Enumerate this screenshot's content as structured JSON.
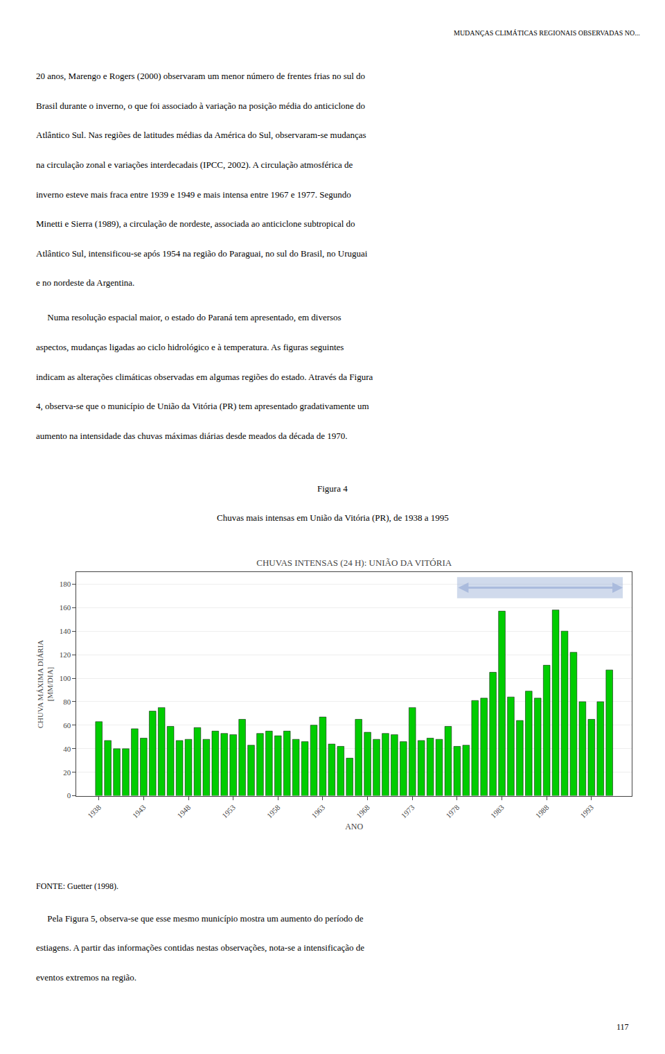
{
  "page_title": "MUDANÇAS CLIMÁTICAS REGIONAIS OBSERVADAS NO...",
  "paragraphs_before": [
    [
      "20 anos, Marengo e Rogers (2000) observaram um menor número de frentes frias no sul do",
      "Brasil durante o inverno, o que foi associado à variação na posição média do anticiclone do",
      "Atlântico Sul. Nas regiões de latitudes médias da América do Sul, observaram-se mudanças",
      "na circulação zonal e variações interdecadais (IPCC, 2002). A circulação atmosférica de",
      "inverno esteve mais fraca entre 1939 e 1949 e mais intensa entre 1967 e 1977. Segundo",
      "Minetti e Sierra (1989), a circulação de nordeste, associada ao anticiclone subtropical do",
      "Atlântico Sul, intensificou-se após 1954 na região do Paraguai, no sul do Brasil, no Uruguai",
      "e no nordeste da Argentina."
    ],
    [
      "     Numa resolução espacial maior, o estado do Paraná tem apresentado, em diversos",
      "aspectos, mudanças ligadas ao ciclo hidrológico e à temperatura. As figuras seguintes",
      "indicam as alterações climáticas observadas em algumas regiões do estado. Através da Figura",
      "4, observa-se que o município de União da Vitória (PR) tem apresentado gradativamente um",
      "aumento na intensidade das chuvas máximas diárias desde meados da década de 1970."
    ]
  ],
  "captions": [
    "Figura 4",
    "Chuvas mais intensas em União da Vitória (PR), de 1938 a 1995"
  ],
  "source": "FONTE: Guetter (1998).",
  "paragraphs_after": [
    [
      "     Pela Figura 5, observa-se que esse mesmo município mostra um aumento do período de",
      "estiagens. A partir das informações contidas nestas observações, nota-se a intensificação de",
      "eventos extremos na região."
    ]
  ],
  "page_number": "117",
  "chart_data": {
    "type": "bar",
    "title": "CHUVAS INTENSAS (24 H): UNIÃO DA VITÓRIA",
    "x_label": "ANO",
    "y_label": [
      "CHUVA MÁXIMA DIÁRIA",
      "[MM/DIA]"
    ],
    "x": [
      1938,
      1939,
      1940,
      1941,
      1942,
      1943,
      1944,
      1945,
      1946,
      1947,
      1948,
      1949,
      1950,
      1951,
      1952,
      1953,
      1954,
      1955,
      1956,
      1957,
      1958,
      1959,
      1960,
      1961,
      1962,
      1963,
      1964,
      1965,
      1966,
      1967,
      1968,
      1969,
      1970,
      1971,
      1972,
      1973,
      1974,
      1975,
      1976,
      1977,
      1978,
      1979,
      1980,
      1981,
      1982,
      1983,
      1984,
      1985,
      1986,
      1987,
      1988,
      1989,
      1990,
      1991,
      1992,
      1993,
      1994,
      1995
    ],
    "values": [
      63,
      47,
      40,
      40,
      57,
      49,
      72,
      75,
      59,
      47,
      48,
      58,
      48,
      55,
      53,
      52,
      65,
      43,
      53,
      55,
      51,
      55,
      48,
      46,
      60,
      67,
      44,
      42,
      32,
      65,
      54,
      48,
      53,
      52,
      46,
      75,
      47,
      49,
      48,
      59,
      42,
      43,
      81,
      83,
      105,
      157,
      84,
      64,
      89,
      83,
      111,
      158,
      140,
      122,
      80,
      65,
      80,
      107
    ],
    "color": "#00cc00",
    "xlim": [
      1935.5,
      1997.5
    ],
    "xticks": [
      1938,
      1943,
      1948,
      1953,
      1958,
      1963,
      1968,
      1973,
      1978,
      1983,
      1988,
      1993
    ],
    "ylim": [
      0,
      190
    ],
    "yticks": [
      0,
      20,
      40,
      60,
      80,
      100,
      120,
      140,
      160,
      180
    ],
    "grid": true,
    "annotations": [
      {
        "x": [
          1978,
          1996.5
        ],
        "y": 177,
        "y_band": [
          168,
          186
        ],
        "color": "#aabbdd",
        "marker": "double_arrow"
      }
    ]
  }
}
